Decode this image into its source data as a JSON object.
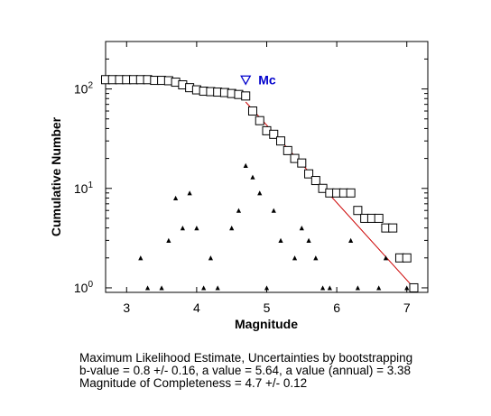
{
  "chart_data": {
    "type": "scatter",
    "xlabel": "Magnitude",
    "ylabel": "Cumulative Number",
    "xlim": [
      2.7,
      7.3
    ],
    "ylim": [
      0.9,
      300
    ],
    "yscale": "log",
    "grid": false,
    "xticks": [
      "3",
      "4",
      "5",
      "6",
      "7"
    ],
    "yticks": [
      {
        "base": "10",
        "exp": "0",
        "value": 1
      },
      {
        "base": "10",
        "exp": "1",
        "value": 10
      },
      {
        "base": "10",
        "exp": "2",
        "value": 100
      }
    ],
    "series": [
      {
        "marker": "square",
        "color": "#000000",
        "points": [
          [
            2.7,
            124
          ],
          [
            2.8,
            124
          ],
          [
            2.9,
            124
          ],
          [
            3.0,
            124
          ],
          [
            3.1,
            124
          ],
          [
            3.2,
            124
          ],
          [
            3.3,
            124
          ],
          [
            3.4,
            122
          ],
          [
            3.5,
            122
          ],
          [
            3.6,
            121
          ],
          [
            3.7,
            117
          ],
          [
            3.8,
            110
          ],
          [
            3.9,
            103
          ],
          [
            4.0,
            98
          ],
          [
            4.1,
            95
          ],
          [
            4.2,
            94
          ],
          [
            4.3,
            93
          ],
          [
            4.4,
            92
          ],
          [
            4.5,
            90
          ],
          [
            4.6,
            88
          ],
          [
            4.7,
            85
          ],
          [
            4.8,
            60
          ],
          [
            4.9,
            48
          ],
          [
            5.0,
            38
          ],
          [
            5.1,
            35
          ],
          [
            5.2,
            30
          ],
          [
            5.3,
            24
          ],
          [
            5.4,
            20
          ],
          [
            5.5,
            18
          ],
          [
            5.6,
            14
          ],
          [
            5.7,
            12
          ],
          [
            5.8,
            10
          ],
          [
            5.9,
            9
          ],
          [
            6.0,
            9
          ],
          [
            6.1,
            9
          ],
          [
            6.2,
            9
          ],
          [
            6.3,
            6
          ],
          [
            6.4,
            5
          ],
          [
            6.5,
            5
          ],
          [
            6.6,
            5
          ],
          [
            6.7,
            4
          ],
          [
            6.8,
            4
          ],
          [
            6.9,
            2
          ],
          [
            7.0,
            2
          ],
          [
            7.1,
            1
          ]
        ]
      },
      {
        "marker": "triangle",
        "color": "#000000",
        "points": [
          [
            3.2,
            2
          ],
          [
            3.3,
            1
          ],
          [
            3.5,
            1
          ],
          [
            3.6,
            3
          ],
          [
            3.7,
            8
          ],
          [
            3.8,
            4
          ],
          [
            3.9,
            9
          ],
          [
            4.0,
            4
          ],
          [
            4.1,
            1
          ],
          [
            4.2,
            2
          ],
          [
            4.3,
            1
          ],
          [
            4.5,
            4
          ],
          [
            4.6,
            6
          ],
          [
            4.7,
            17
          ],
          [
            4.8,
            13
          ],
          [
            4.9,
            9
          ],
          [
            5.0,
            1
          ],
          [
            5.1,
            6
          ],
          [
            5.2,
            3
          ],
          [
            5.4,
            2
          ],
          [
            5.5,
            4
          ],
          [
            5.6,
            3
          ],
          [
            5.7,
            2
          ],
          [
            5.8,
            1
          ],
          [
            5.9,
            1
          ],
          [
            6.2,
            3
          ],
          [
            6.3,
            1
          ],
          [
            6.6,
            1
          ],
          [
            6.7,
            2
          ],
          [
            7.0,
            1
          ],
          [
            7.1,
            1
          ]
        ]
      }
    ],
    "fit_line": {
      "color": "#cc0000",
      "from": [
        4.7,
        74
      ],
      "to": [
        7.1,
        1
      ]
    },
    "mc_marker": {
      "label": "Mc",
      "x": 4.7,
      "y": 124,
      "color": "#0000cc"
    },
    "caption": [
      "Maximum Likelihood Estimate, Uncertainties by bootstrapping",
      "b-value = 0.8 +/- 0.16,  a value = 5.64,  a value (annual) = 3.38",
      "Magnitude of Completeness = 4.7 +/- 0.12"
    ]
  }
}
